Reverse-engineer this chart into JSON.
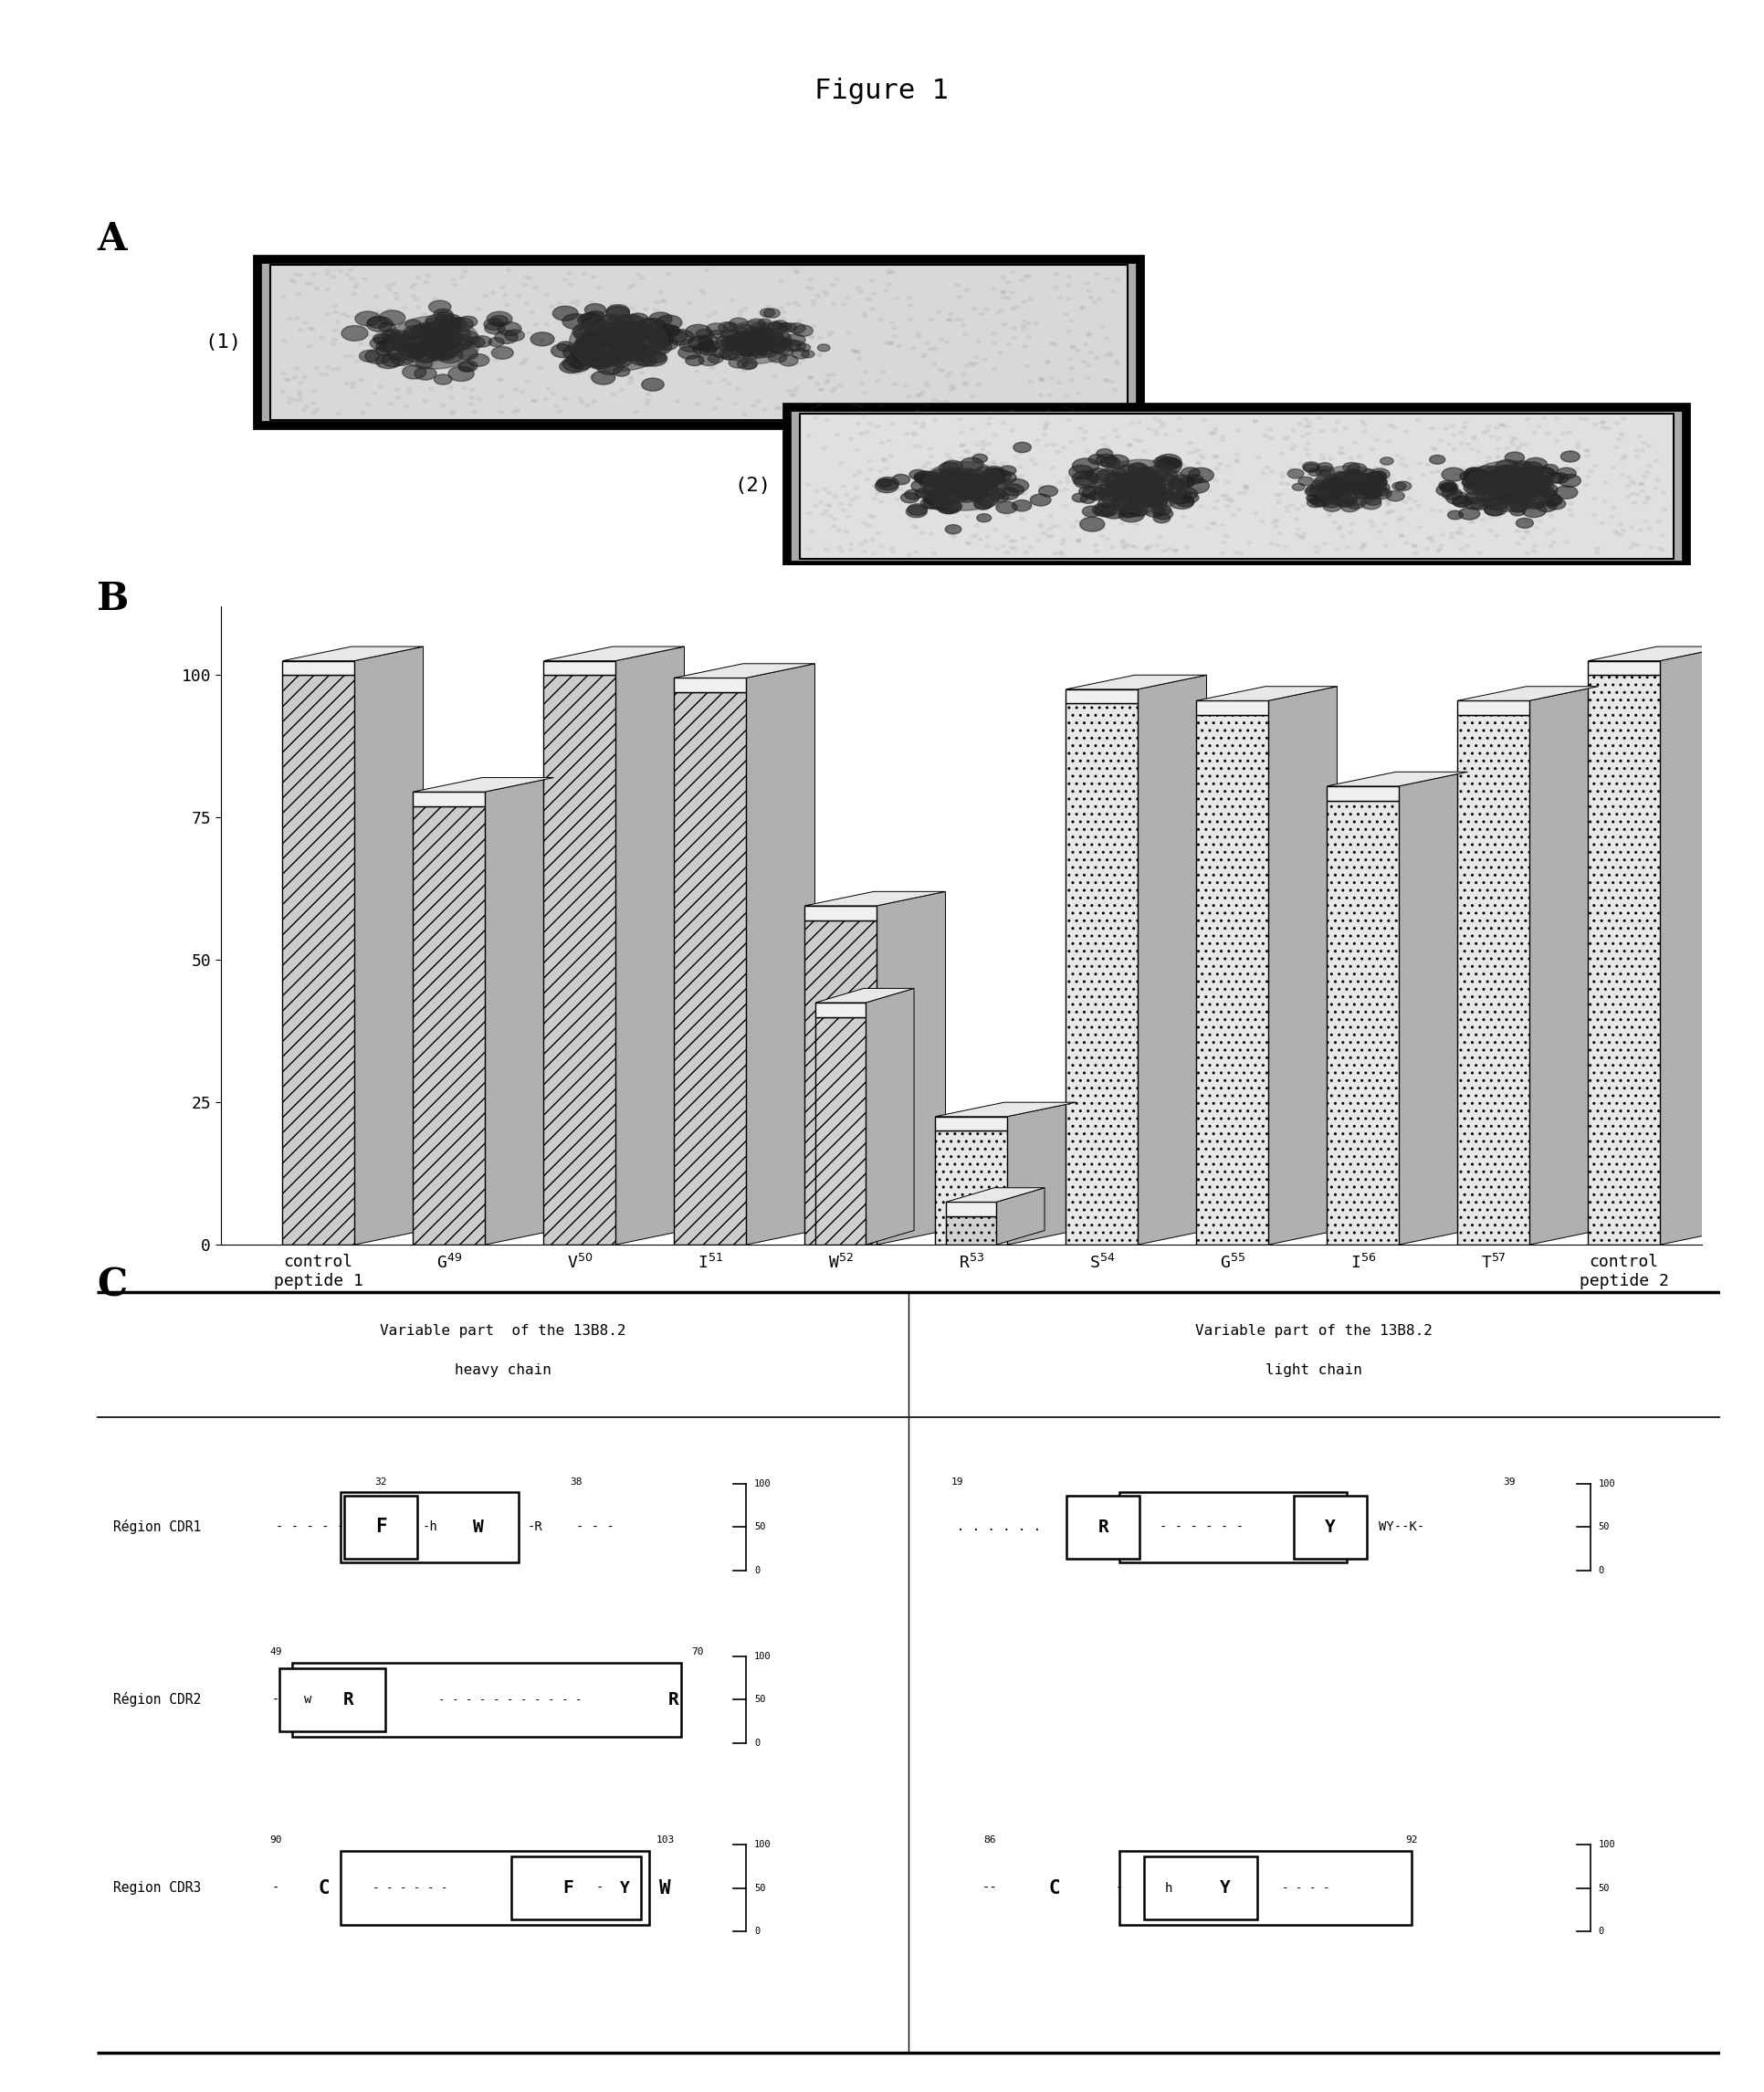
{
  "title": "Figure 1",
  "bar_values1": [
    100,
    77,
    100,
    97,
    40,
    5,
    95,
    93,
    78,
    93,
    100
  ],
  "bar_values2": [
    null,
    null,
    null,
    null,
    57,
    20,
    null,
    null,
    null,
    null,
    null
  ],
  "yticks": [
    0,
    25,
    50,
    75,
    100
  ],
  "bg_color": "#ffffff",
  "tick_labels": [
    "control\npeptide 1",
    "G^{49}",
    "V^{50}",
    "I^{51}",
    "W^{52}",
    "R^{53}",
    "S^{54}",
    "G^{55}",
    "I^{56}",
    "T^{57}",
    "control\npeptide 2"
  ]
}
